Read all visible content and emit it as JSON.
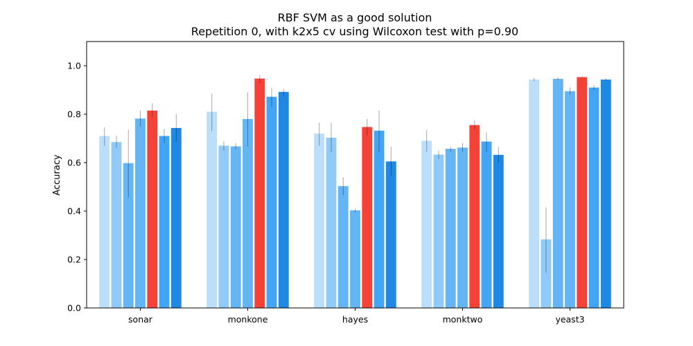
{
  "chart_data": {
    "type": "bar",
    "title": "RBF SVM as a good solution",
    "subtitle": "Repetition 0, with k2x5 cv using Wilcoxon test with p=0.90",
    "xlabel": "",
    "ylabel": "Accuracy",
    "ylim": [
      0,
      1.1
    ],
    "yticks": [
      "0.0",
      "0.2",
      "0.4",
      "0.6",
      "0.8",
      "1.0"
    ],
    "categories": [
      "sonar",
      "monkone",
      "hayes",
      "monktwo",
      "yeast3"
    ],
    "grid": false,
    "series": [
      {
        "color": "#bbdefb",
        "values": [
          0.71,
          0.81,
          0.72,
          0.69,
          0.943
        ],
        "err_low": [
          0.67,
          0.73,
          0.67,
          0.645,
          0.935
        ],
        "err_high": [
          0.745,
          0.885,
          0.765,
          0.735,
          0.95
        ]
      },
      {
        "color": "#90caf9",
        "values": [
          0.685,
          0.67,
          0.703,
          0.633,
          0.283
        ],
        "err_low": [
          0.66,
          0.65,
          0.645,
          0.615,
          0.145
        ],
        "err_high": [
          0.712,
          0.688,
          0.765,
          0.65,
          0.415
        ]
      },
      {
        "color": "#64b5f6",
        "values": [
          0.598,
          0.667,
          0.503,
          0.657,
          0.946
        ],
        "err_low": [
          0.455,
          0.655,
          0.465,
          0.645,
          0.94
        ],
        "err_high": [
          0.735,
          0.68,
          0.54,
          0.665,
          0.952
        ]
      },
      {
        "color": "#64b5f6",
        "values": [
          0.782,
          0.78,
          0.403,
          0.662,
          0.895
        ],
        "err_low": [
          0.75,
          0.665,
          0.395,
          0.645,
          0.88
        ],
        "err_high": [
          0.815,
          0.89,
          0.41,
          0.68,
          0.91
        ]
      },
      {
        "color": "#f44336",
        "values": [
          0.815,
          0.947,
          0.747,
          0.755,
          0.953
        ],
        "err_low": [
          0.79,
          0.93,
          0.715,
          0.735,
          0.95
        ],
        "err_high": [
          0.845,
          0.96,
          0.78,
          0.775,
          0.956
        ]
      },
      {
        "color": "#42a5f5",
        "values": [
          0.71,
          0.872,
          0.732,
          0.687,
          0.91
        ],
        "err_low": [
          0.68,
          0.83,
          0.645,
          0.645,
          0.9
        ],
        "err_high": [
          0.74,
          0.91,
          0.815,
          0.725,
          0.92
        ]
      },
      {
        "color": "#1e88e5",
        "values": [
          0.743,
          0.892,
          0.605,
          0.632,
          0.943
        ],
        "err_low": [
          0.685,
          0.875,
          0.545,
          0.6,
          0.938
        ],
        "err_high": [
          0.8,
          0.905,
          0.665,
          0.665,
          0.948
        ]
      }
    ]
  }
}
